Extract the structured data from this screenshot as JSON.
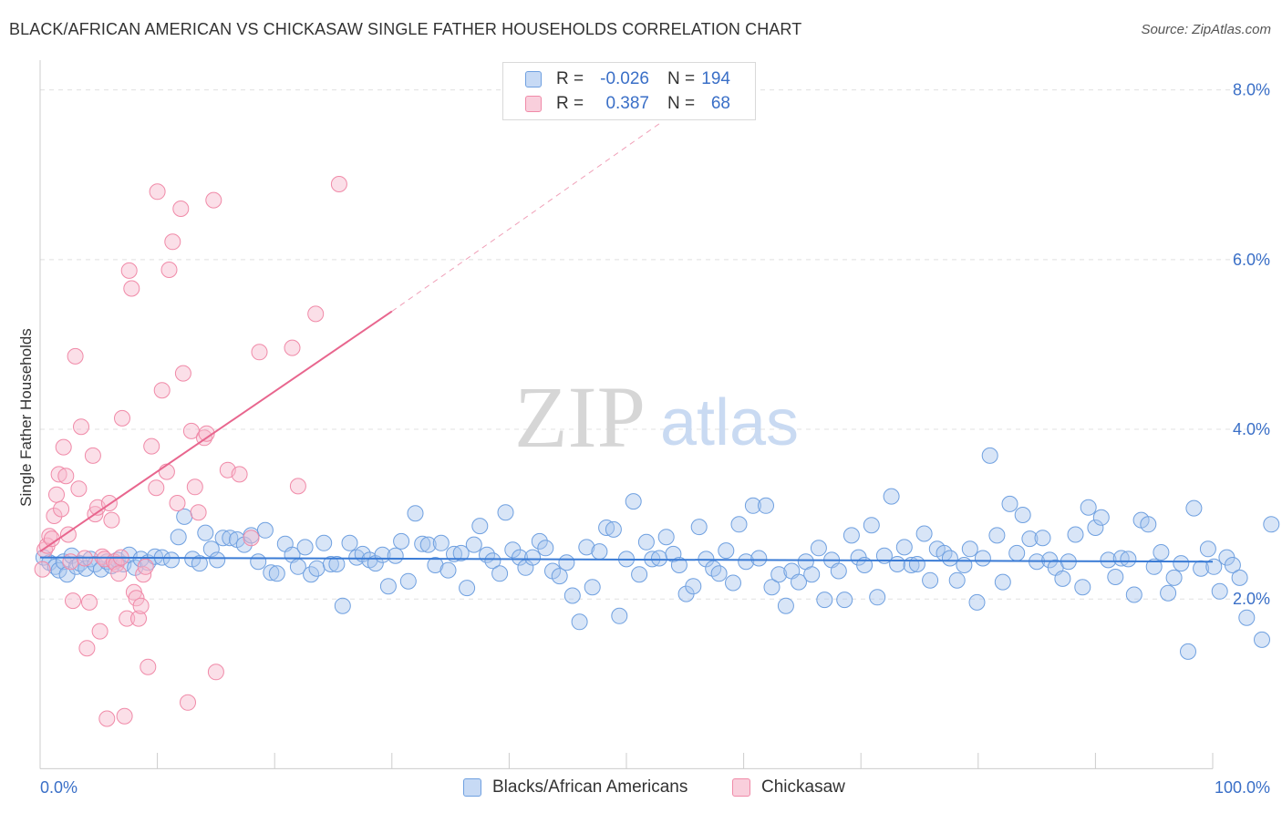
{
  "title": "BLACK/AFRICAN AMERICAN VS CHICKASAW SINGLE FATHER HOUSEHOLDS CORRELATION CHART",
  "source": "Source: ZipAtlas.com",
  "watermark": {
    "zip": "ZIP",
    "atlas": "atlas"
  },
  "legend": [
    {
      "r_label": "R =",
      "r_value": "-0.026",
      "n_label": "N =",
      "n_value": "194",
      "color": "#6fa0e0"
    },
    {
      "r_label": "R =",
      "r_value": "0.387",
      "n_label": "N =",
      "n_value": "68",
      "color": "#f08aa8"
    }
  ],
  "bottom_legend": [
    "Blacks/African Americans",
    "Chickasaw"
  ],
  "chart_data": {
    "type": "scatter",
    "title": "BLACK/AFRICAN AMERICAN VS CHICKASAW SINGLE FATHER HOUSEHOLDS CORRELATION CHART",
    "xlabel": "",
    "ylabel": "Single Father Households",
    "xlim": [
      0,
      100
    ],
    "ylim": [
      0,
      8.2
    ],
    "x_tick_labels": [
      "0.0%",
      "100.0%"
    ],
    "y_ticks": [
      2.0,
      4.0,
      6.0,
      8.0
    ],
    "y_tick_labels": [
      "2.0%",
      "4.0%",
      "6.0%",
      "8.0%"
    ],
    "grid": true,
    "legend_position": "top-center",
    "series": [
      {
        "name": "Blacks/African Americans",
        "color": "#6fa0e0",
        "trend": {
          "x": [
            0,
            100
          ],
          "y": [
            2.49,
            2.44
          ],
          "style": "solid"
        },
        "points": [
          [
            0.3,
            2.49
          ],
          [
            0.8,
            2.43
          ],
          [
            1.3,
            2.38
          ],
          [
            1.6,
            2.34
          ],
          [
            2.0,
            2.44
          ],
          [
            2.3,
            2.29
          ],
          [
            2.7,
            2.51
          ],
          [
            3.1,
            2.38
          ],
          [
            3.4,
            2.42
          ],
          [
            3.9,
            2.36
          ],
          [
            4.3,
            2.47
          ],
          [
            4.7,
            2.41
          ],
          [
            5.2,
            2.35
          ],
          [
            5.7,
            2.44
          ],
          [
            6.1,
            2.39
          ],
          [
            6.6,
            2.46
          ],
          [
            7.1,
            2.41
          ],
          [
            7.6,
            2.52
          ],
          [
            8.1,
            2.37
          ],
          [
            8.6,
            2.47
          ],
          [
            9.2,
            2.43
          ],
          [
            9.8,
            2.5
          ],
          [
            10.4,
            2.49
          ],
          [
            11.2,
            2.46
          ],
          [
            11.8,
            2.73
          ],
          [
            12.3,
            2.97
          ],
          [
            13.0,
            2.47
          ],
          [
            13.6,
            2.42
          ],
          [
            14.1,
            2.78
          ],
          [
            14.6,
            2.59
          ],
          [
            15.1,
            2.46
          ],
          [
            15.6,
            2.72
          ],
          [
            16.2,
            2.72
          ],
          [
            16.8,
            2.7
          ],
          [
            17.4,
            2.64
          ],
          [
            18.0,
            2.75
          ],
          [
            18.6,
            2.44
          ],
          [
            19.2,
            2.81
          ],
          [
            19.7,
            2.31
          ],
          [
            20.2,
            2.3
          ],
          [
            20.9,
            2.65
          ],
          [
            21.5,
            2.52
          ],
          [
            22.0,
            2.38
          ],
          [
            22.6,
            2.61
          ],
          [
            23.1,
            2.29
          ],
          [
            23.6,
            2.36
          ],
          [
            24.2,
            2.66
          ],
          [
            24.8,
            2.41
          ],
          [
            25.3,
            2.41
          ],
          [
            25.8,
            1.92
          ],
          [
            26.4,
            2.66
          ],
          [
            27.0,
            2.49
          ],
          [
            27.5,
            2.53
          ],
          [
            28.1,
            2.46
          ],
          [
            28.6,
            2.42
          ],
          [
            29.2,
            2.52
          ],
          [
            29.7,
            2.15
          ],
          [
            30.3,
            2.51
          ],
          [
            30.8,
            2.68
          ],
          [
            31.4,
            2.21
          ],
          [
            32.0,
            3.01
          ],
          [
            32.6,
            2.65
          ],
          [
            33.1,
            2.64
          ],
          [
            33.7,
            2.4
          ],
          [
            34.2,
            2.66
          ],
          [
            34.8,
            2.34
          ],
          [
            35.3,
            2.53
          ],
          [
            35.9,
            2.54
          ],
          [
            36.4,
            2.13
          ],
          [
            37.0,
            2.64
          ],
          [
            37.5,
            2.86
          ],
          [
            38.1,
            2.52
          ],
          [
            38.6,
            2.45
          ],
          [
            39.2,
            2.3
          ],
          [
            39.7,
            3.02
          ],
          [
            40.3,
            2.58
          ],
          [
            40.9,
            2.49
          ],
          [
            41.4,
            2.37
          ],
          [
            42.0,
            2.49
          ],
          [
            42.6,
            2.68
          ],
          [
            43.1,
            2.6
          ],
          [
            43.7,
            2.33
          ],
          [
            44.3,
            2.27
          ],
          [
            44.9,
            2.43
          ],
          [
            45.4,
            2.04
          ],
          [
            46.0,
            1.73
          ],
          [
            46.6,
            2.61
          ],
          [
            47.1,
            2.14
          ],
          [
            47.7,
            2.56
          ],
          [
            48.3,
            2.84
          ],
          [
            48.9,
            2.82
          ],
          [
            49.4,
            1.8
          ],
          [
            50.0,
            2.47
          ],
          [
            50.6,
            3.15
          ],
          [
            51.1,
            2.29
          ],
          [
            51.7,
            2.67
          ],
          [
            52.2,
            2.47
          ],
          [
            52.8,
            2.48
          ],
          [
            53.4,
            2.73
          ],
          [
            54.0,
            2.53
          ],
          [
            54.5,
            2.4
          ],
          [
            55.1,
            2.06
          ],
          [
            55.7,
            2.15
          ],
          [
            56.2,
            2.85
          ],
          [
            56.8,
            2.47
          ],
          [
            57.4,
            2.36
          ],
          [
            57.9,
            2.3
          ],
          [
            58.5,
            2.57
          ],
          [
            59.1,
            2.19
          ],
          [
            59.6,
            2.88
          ],
          [
            60.2,
            2.44
          ],
          [
            60.8,
            3.1
          ],
          [
            61.3,
            2.48
          ],
          [
            61.9,
            3.1
          ],
          [
            62.4,
            2.14
          ],
          [
            63.0,
            2.29
          ],
          [
            63.6,
            1.92
          ],
          [
            64.1,
            2.33
          ],
          [
            64.7,
            2.2
          ],
          [
            65.3,
            2.44
          ],
          [
            65.8,
            2.29
          ],
          [
            66.4,
            2.6
          ],
          [
            66.9,
            1.99
          ],
          [
            67.5,
            2.46
          ],
          [
            68.1,
            2.33
          ],
          [
            68.6,
            1.99
          ],
          [
            69.2,
            2.75
          ],
          [
            69.8,
            2.49
          ],
          [
            70.3,
            2.4
          ],
          [
            70.9,
            2.87
          ],
          [
            71.4,
            2.02
          ],
          [
            72.0,
            2.51
          ],
          [
            72.6,
            3.21
          ],
          [
            73.1,
            2.41
          ],
          [
            73.7,
            2.61
          ],
          [
            74.3,
            2.4
          ],
          [
            74.8,
            2.41
          ],
          [
            75.4,
            2.77
          ],
          [
            75.9,
            2.22
          ],
          [
            76.5,
            2.59
          ],
          [
            77.1,
            2.54
          ],
          [
            77.6,
            2.48
          ],
          [
            78.2,
            2.22
          ],
          [
            78.8,
            2.4
          ],
          [
            79.3,
            2.59
          ],
          [
            79.9,
            1.96
          ],
          [
            80.4,
            2.48
          ],
          [
            81.0,
            3.69
          ],
          [
            81.6,
            2.75
          ],
          [
            82.1,
            2.2
          ],
          [
            82.7,
            3.12
          ],
          [
            83.3,
            2.54
          ],
          [
            83.8,
            2.99
          ],
          [
            84.4,
            2.71
          ],
          [
            85.0,
            2.44
          ],
          [
            85.5,
            2.72
          ],
          [
            86.1,
            2.46
          ],
          [
            86.6,
            2.37
          ],
          [
            87.2,
            2.24
          ],
          [
            87.7,
            2.44
          ],
          [
            88.3,
            2.76
          ],
          [
            88.9,
            2.14
          ],
          [
            89.4,
            3.08
          ],
          [
            90.0,
            2.84
          ],
          [
            90.5,
            2.96
          ],
          [
            91.1,
            2.46
          ],
          [
            91.7,
            2.26
          ],
          [
            92.2,
            2.48
          ],
          [
            92.8,
            2.47
          ],
          [
            93.3,
            2.05
          ],
          [
            93.9,
            2.93
          ],
          [
            94.5,
            2.88
          ],
          [
            95.0,
            2.38
          ],
          [
            95.6,
            2.55
          ],
          [
            96.2,
            2.07
          ],
          [
            96.7,
            2.25
          ],
          [
            97.3,
            2.42
          ],
          [
            97.9,
            1.38
          ],
          [
            98.4,
            3.07
          ],
          [
            99.0,
            2.36
          ],
          [
            99.6,
            2.59
          ],
          [
            100.1,
            2.38
          ],
          [
            100.6,
            2.09
          ],
          [
            101.2,
            2.49
          ],
          [
            101.7,
            2.4
          ],
          [
            102.3,
            2.25
          ],
          [
            102.9,
            1.78
          ],
          [
            104.2,
            1.52
          ],
          [
            105.0,
            2.88
          ]
        ]
      },
      {
        "name": "Chickasaw",
        "color": "#f08aa8",
        "trend": {
          "x": [
            0,
            30
          ],
          "y": [
            2.56,
            5.39
          ],
          "style": "solid",
          "extended_to": [
            53,
            7.62
          ],
          "extended_style": "dashed"
        },
        "points": [
          [
            0.2,
            2.35
          ],
          [
            0.4,
            2.58
          ],
          [
            0.6,
            2.63
          ],
          [
            0.8,
            2.74
          ],
          [
            1.0,
            2.71
          ],
          [
            1.2,
            2.98
          ],
          [
            1.4,
            3.23
          ],
          [
            1.6,
            3.47
          ],
          [
            1.8,
            3.06
          ],
          [
            2.0,
            3.79
          ],
          [
            2.2,
            3.45
          ],
          [
            2.4,
            2.76
          ],
          [
            2.6,
            2.44
          ],
          [
            2.8,
            1.98
          ],
          [
            3.0,
            4.86
          ],
          [
            3.3,
            3.3
          ],
          [
            3.5,
            4.03
          ],
          [
            3.8,
            2.48
          ],
          [
            4.0,
            1.42
          ],
          [
            4.2,
            1.96
          ],
          [
            4.5,
            3.69
          ],
          [
            4.7,
            3.0
          ],
          [
            4.9,
            3.08
          ],
          [
            5.1,
            1.62
          ],
          [
            5.3,
            2.5
          ],
          [
            5.5,
            2.47
          ],
          [
            5.7,
            0.59
          ],
          [
            5.9,
            3.13
          ],
          [
            6.1,
            2.93
          ],
          [
            6.3,
            2.44
          ],
          [
            6.5,
            2.41
          ],
          [
            6.7,
            2.3
          ],
          [
            6.9,
            2.49
          ],
          [
            7.0,
            4.13
          ],
          [
            7.2,
            0.62
          ],
          [
            7.4,
            1.77
          ],
          [
            7.6,
            5.87
          ],
          [
            7.8,
            5.66
          ],
          [
            8.0,
            2.08
          ],
          [
            8.2,
            2.01
          ],
          [
            8.4,
            1.77
          ],
          [
            8.6,
            1.92
          ],
          [
            8.8,
            2.29
          ],
          [
            9.0,
            2.38
          ],
          [
            9.2,
            1.2
          ],
          [
            9.5,
            3.8
          ],
          [
            9.9,
            3.31
          ],
          [
            10.0,
            6.8
          ],
          [
            10.4,
            4.46
          ],
          [
            10.8,
            3.5
          ],
          [
            11.0,
            5.88
          ],
          [
            11.3,
            6.21
          ],
          [
            11.7,
            3.13
          ],
          [
            12.0,
            6.6
          ],
          [
            12.2,
            4.66
          ],
          [
            12.6,
            0.78
          ],
          [
            12.9,
            3.98
          ],
          [
            13.2,
            3.32
          ],
          [
            13.5,
            3.02
          ],
          [
            14.0,
            3.9
          ],
          [
            14.2,
            3.95
          ],
          [
            14.8,
            6.7
          ],
          [
            15.0,
            1.14
          ],
          [
            16.0,
            3.52
          ],
          [
            17.0,
            3.47
          ],
          [
            18.0,
            2.72
          ],
          [
            18.7,
            4.91
          ],
          [
            21.5,
            4.96
          ],
          [
            22.0,
            3.33
          ],
          [
            23.5,
            5.36
          ],
          [
            25.5,
            6.89
          ]
        ]
      }
    ]
  }
}
